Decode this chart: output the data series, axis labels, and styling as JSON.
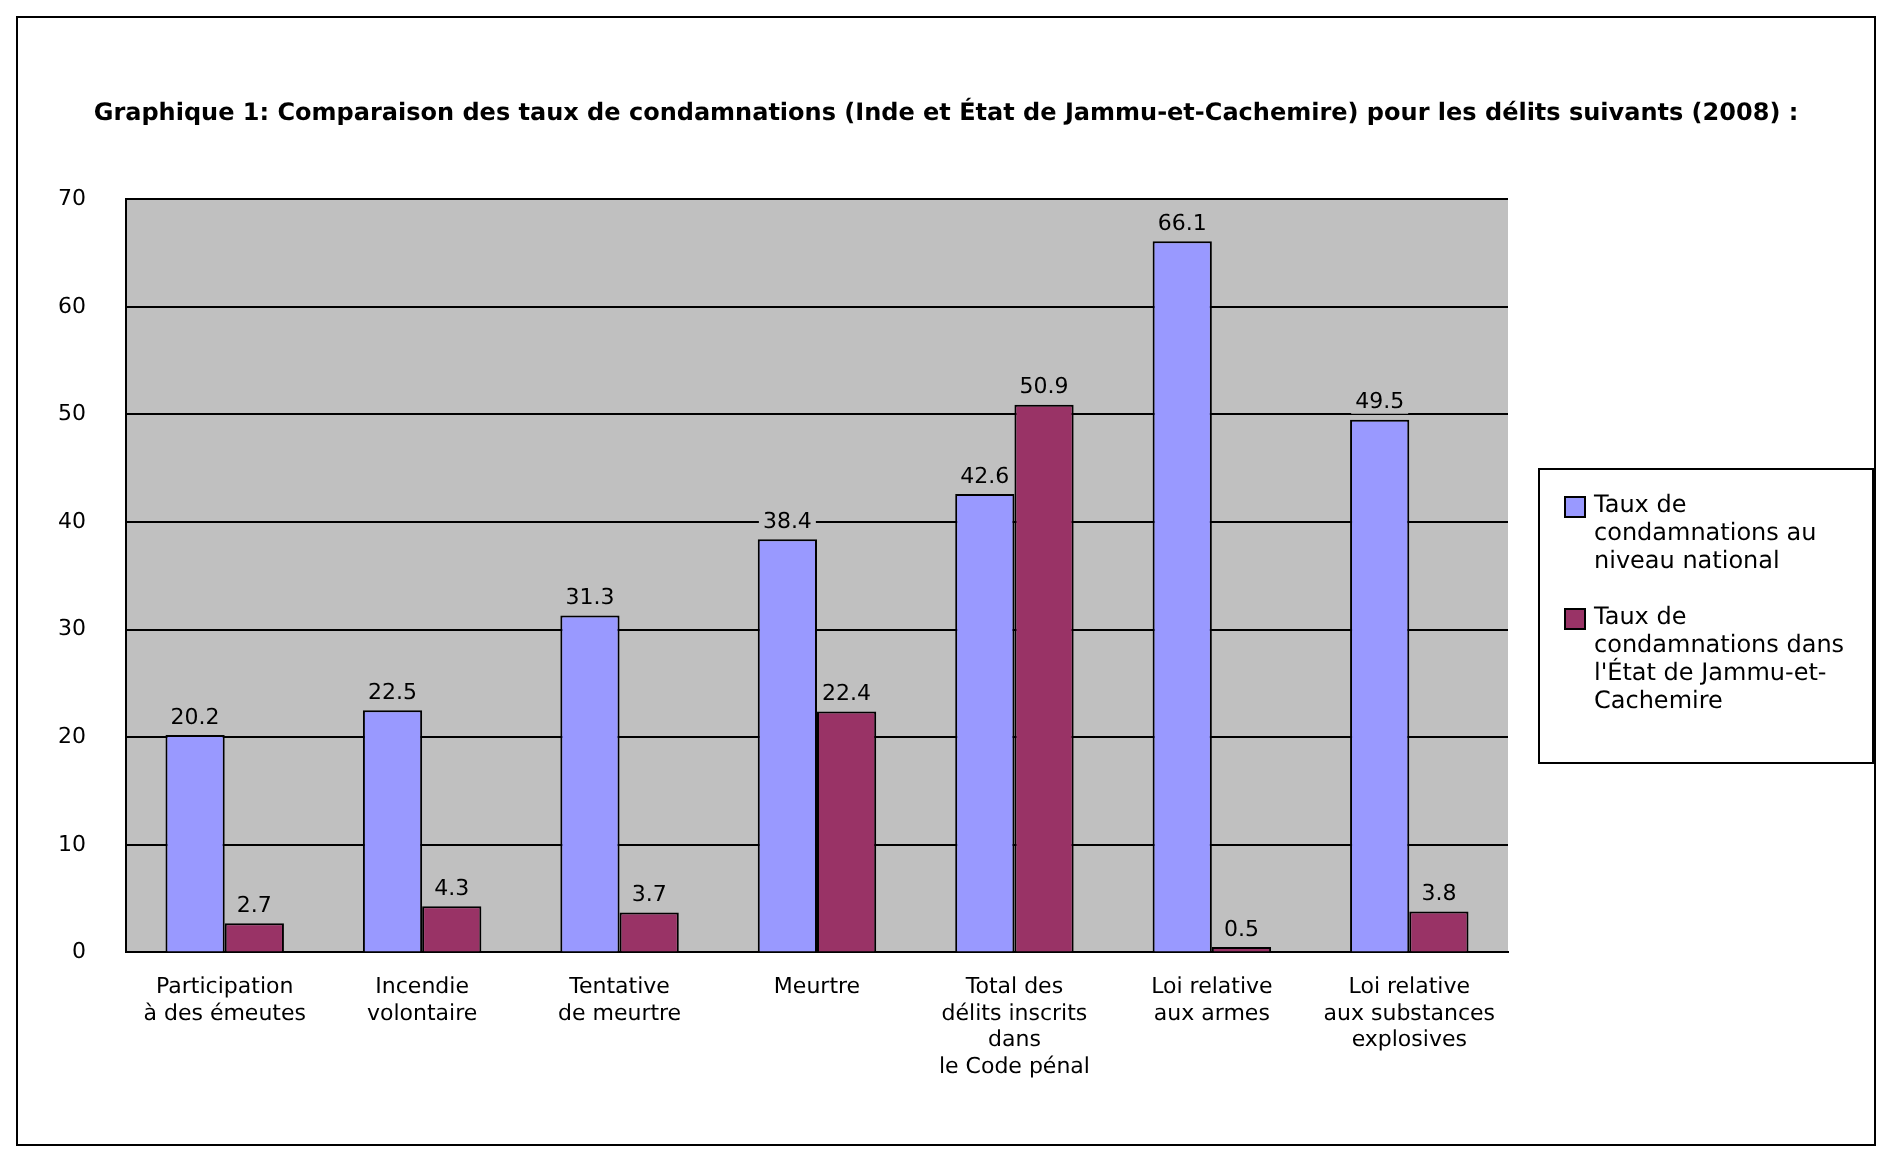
{
  "chart_data": {
    "type": "bar",
    "title": "Graphique 1: Comparaison des taux de condamnations (Inde et État de Jammu-et-Cachemire) pour les délits suivants (2008) :",
    "categories": [
      "Participation\nà des émeutes",
      "Incendie\nvolontaire",
      "Tentative\nde meurtre",
      "Meurtre",
      "Total des\ndélits inscrits\ndans\nle Code pénal",
      "Loi relative\naux armes",
      "Loi relative\naux substances\nexplosives"
    ],
    "series": [
      {
        "name": "Taux de condamnations au niveau national",
        "color": "#9999ff",
        "values": [
          20.2,
          22.5,
          31.3,
          38.4,
          42.6,
          66.1,
          49.5
        ]
      },
      {
        "name": "Taux de condamnations dans l'État de Jammu-et-Cachemire",
        "color": "#993366",
        "values": [
          2.7,
          4.3,
          3.7,
          22.4,
          50.9,
          0.5,
          3.8
        ]
      }
    ],
    "ylim": [
      0,
      70
    ],
    "yticks": [
      0,
      10,
      20,
      30,
      40,
      50,
      60,
      70
    ],
    "grid": "y",
    "legend": "right",
    "data_labels": true
  }
}
